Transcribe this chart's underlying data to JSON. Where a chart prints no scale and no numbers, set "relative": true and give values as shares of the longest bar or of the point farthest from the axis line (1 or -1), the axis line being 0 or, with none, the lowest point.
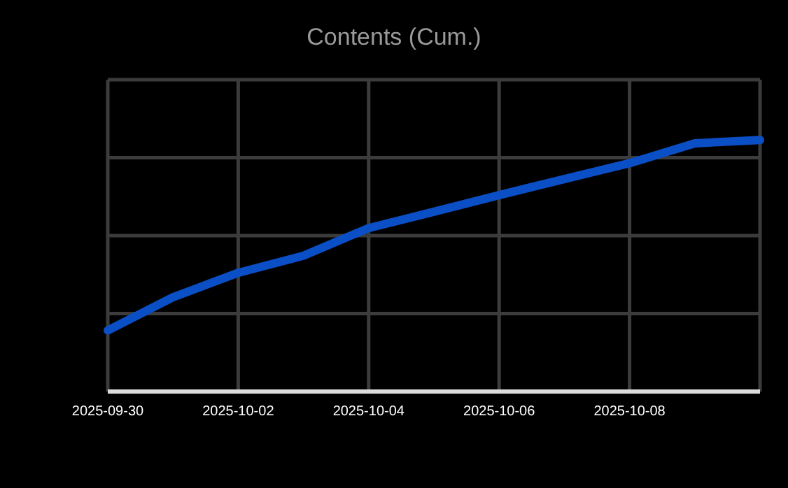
{
  "chart_data": {
    "type": "line",
    "title": "Contents (Cum.)",
    "x": [
      "2025-09-30",
      "2025-10-01",
      "2025-10-02",
      "2025-10-03",
      "2025-10-04",
      "2025-10-05",
      "2025-10-06",
      "2025-10-07",
      "2025-10-08",
      "2025-10-09",
      "2025-10-10"
    ],
    "series": [
      {
        "color": "#0b4fc6",
        "values": [
          0.243,
          0.375,
          0.472,
          0.54,
          0.65,
          0.715,
          0.781,
          0.845,
          0.908,
          0.987,
          1
        ]
      }
    ],
    "relative": true,
    "xlim": [
      "2025-09-30",
      "2025-10-10"
    ],
    "xticks": [
      "2025-09-30",
      "2025-10-02",
      "2025-10-04",
      "2025-10-06",
      "2025-10-08"
    ],
    "grid": true,
    "marker": "none",
    "line_style": "solid"
  }
}
